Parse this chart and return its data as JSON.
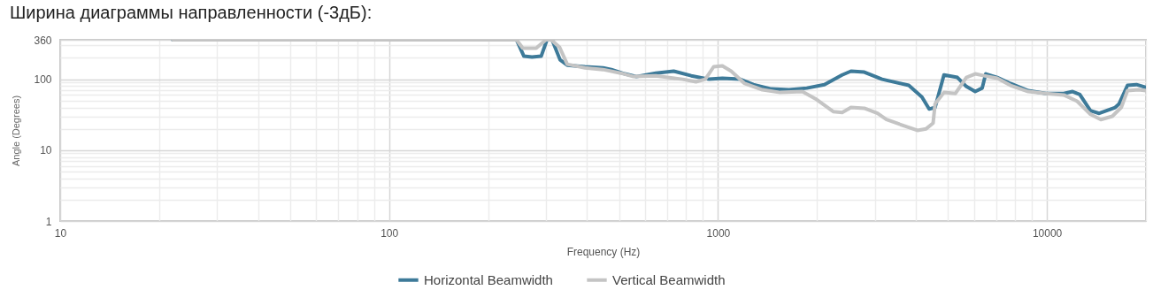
{
  "chart_data": {
    "type": "line",
    "title": "Ширина диаграммы направленности (-3дБ):",
    "xlabel": "Frequency (Hz)",
    "ylabel": "Angle (Degrees)",
    "log": "xy",
    "xlim": [
      10,
      20000
    ],
    "ylim": [
      1,
      360
    ],
    "xticks": [
      10,
      100,
      1000,
      10000
    ],
    "yticks": [
      1,
      10,
      100,
      360
    ],
    "grid": true,
    "legend": "bottom",
    "line_style": "solid",
    "series": [
      {
        "name": "Horizontal Beamwidth",
        "color": "#3d7a99",
        "x": [
          22,
          244,
          257,
          272,
          290,
          302,
          313,
          331,
          348,
          394,
          447,
          474,
          521,
          565,
          647,
          733,
          829,
          940,
          1031,
          1167,
          1281,
          1452,
          1644,
          1862,
          2106,
          2385,
          2537,
          2785,
          3153,
          3802,
          4169,
          4385,
          4571,
          4864,
          5343,
          5690,
          6053,
          6357,
          6516,
          7063,
          7748,
          8774,
          9934,
          11250,
          11970,
          12590,
          13560,
          14420,
          16130,
          16580,
          17580,
          18720,
          20000
        ],
        "values": [
          360,
          360,
          211,
          205,
          211,
          360,
          360,
          188,
          158,
          150,
          145,
          137,
          119,
          109,
          122,
          130,
          112,
          100,
          103,
          100,
          84,
          73,
          71,
          75,
          84,
          115,
          130,
          126,
          100,
          82,
          56,
          38,
          40,
          115,
          106,
          79,
          67,
          75,
          119,
          106,
          87,
          69,
          63,
          63,
          67,
          61,
          36,
          33,
          40,
          45,
          82,
          84,
          77
        ]
      },
      {
        "name": "Vertical Beamwidth",
        "color": "#c4c4c4",
        "x": [
          22,
          244,
          255,
          280,
          300,
          311,
          330,
          348,
          394,
          447,
          506,
          554,
          647,
          780,
          857,
          915,
          970,
          1031,
          1097,
          1205,
          1365,
          1545,
          1805,
          1978,
          2240,
          2385,
          2537,
          2785,
          3055,
          3252,
          3683,
          4038,
          4295,
          4508,
          4571,
          4864,
          5272,
          5690,
          6053,
          6436,
          7063,
          7748,
          8774,
          9934,
          11250,
          12360,
          13560,
          14590,
          15810,
          16830,
          17580,
          19000,
          20000
        ],
        "values": [
          360,
          360,
          274,
          274,
          360,
          360,
          282,
          163,
          145,
          137,
          122,
          109,
          112,
          100,
          92,
          100,
          150,
          154,
          130,
          87,
          71,
          65,
          67,
          53,
          35,
          34,
          40,
          39,
          33,
          27,
          22,
          19,
          20,
          24,
          45,
          65,
          63,
          106,
          119,
          112,
          103,
          82,
          67,
          63,
          60,
          49,
          32,
          27,
          30,
          40,
          69,
          71,
          69
        ]
      }
    ]
  }
}
